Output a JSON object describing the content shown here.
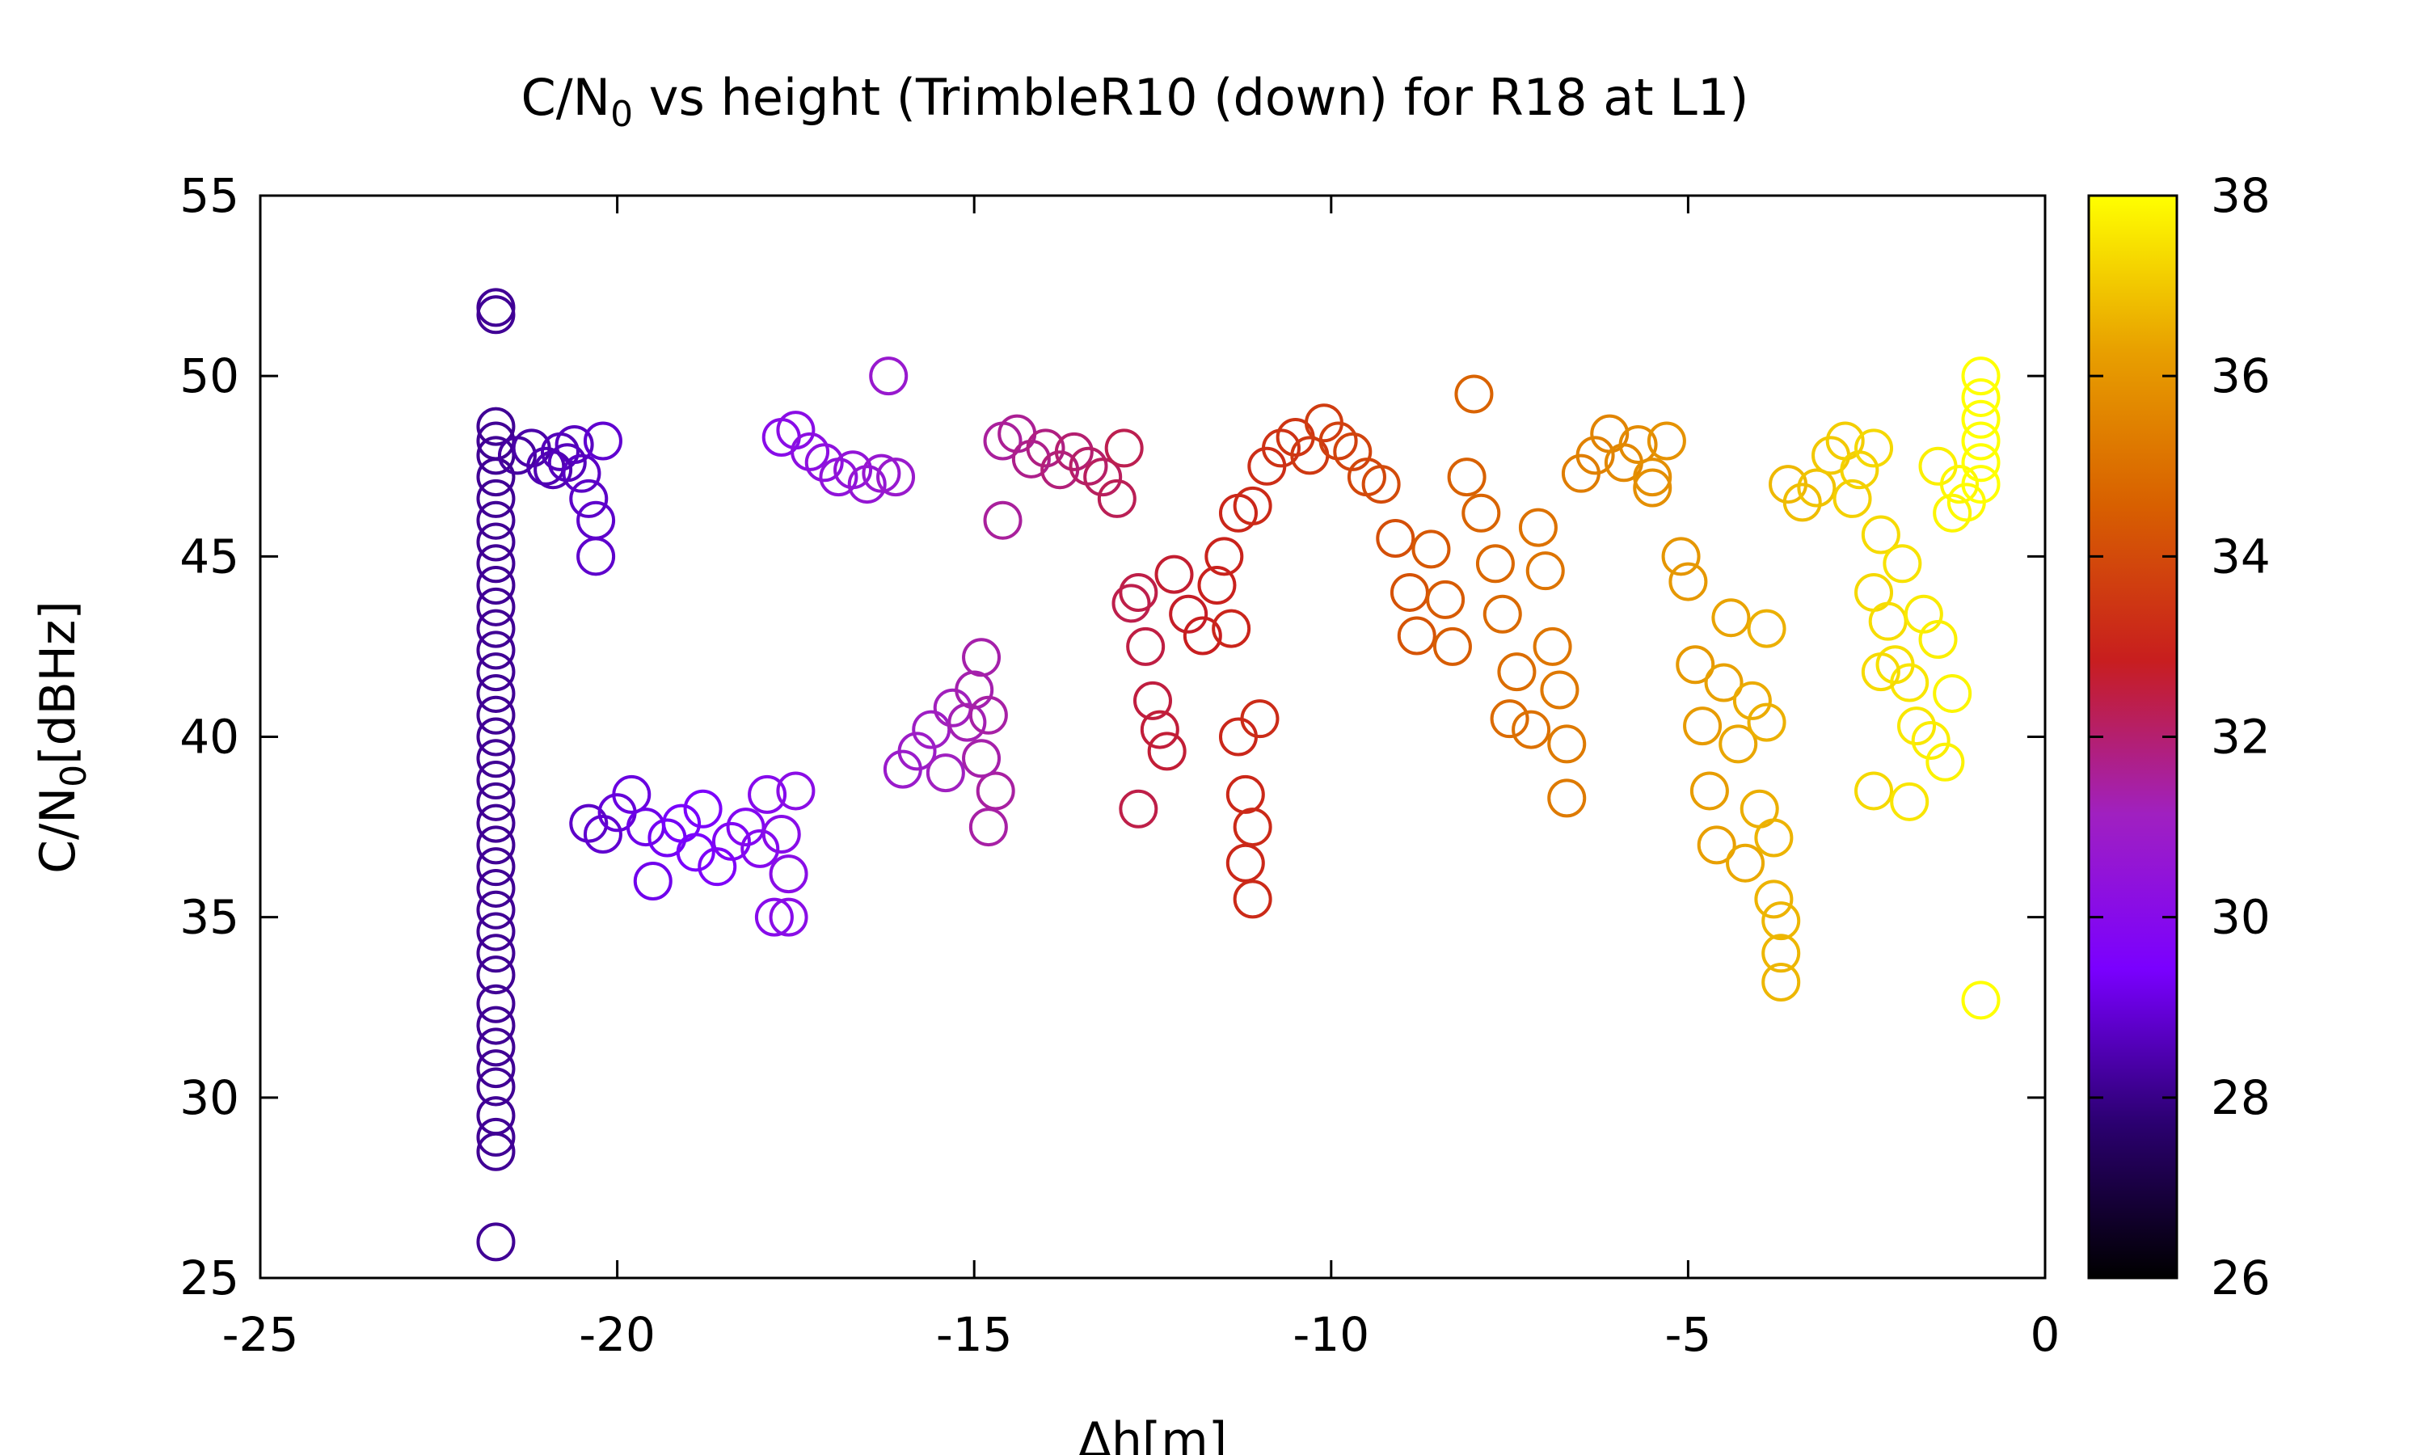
{
  "chart_data": {
    "type": "scatter",
    "title": {
      "main": "C/N",
      "sub": "0",
      "rest": " vs height (TrimbleR10 (down) for R18 at L1)"
    },
    "xlabel": "Δh[m]",
    "ylabel": {
      "main": "C/N",
      "sub": "0",
      "rest": "[dBHz]"
    },
    "xlim": [
      -25,
      0
    ],
    "ylim": [
      25,
      55
    ],
    "xticks": [
      -25,
      -20,
      -15,
      -10,
      -5,
      0
    ],
    "xtick_labels": [
      "-25",
      "-20",
      "-15",
      "-10",
      "-5",
      "0"
    ],
    "yticks": [
      25,
      30,
      35,
      40,
      45,
      50,
      55
    ],
    "ytick_labels": [
      "25",
      "30",
      "35",
      "40",
      "45",
      "50",
      "55"
    ],
    "marker": "open-circle",
    "colorbar": {
      "range": [
        26,
        38
      ],
      "ticks": [
        26,
        28,
        30,
        32,
        34,
        36,
        38
      ],
      "tick_labels": [
        "26",
        "28",
        "30",
        "32",
        "34",
        "36",
        "38"
      ],
      "colormap": "gnuplot-black-purple-red-yellow",
      "stops": [
        "#000000",
        "#2b0070",
        "#7a00ff",
        "#a020c0",
        "#c81e1e",
        "#d86000",
        "#e8a000",
        "#ffff00"
      ]
    },
    "series": [
      {
        "points": [
          [
            -21.7,
            51.9
          ],
          [
            -21.7,
            51.7
          ],
          [
            -21.7,
            48.6
          ],
          [
            -21.7,
            48.2
          ],
          [
            -21.7,
            47.8
          ],
          [
            -21.7,
            47.2
          ],
          [
            -21.7,
            46.6
          ],
          [
            -21.7,
            46.0
          ],
          [
            -21.7,
            45.4
          ],
          [
            -21.7,
            44.8
          ],
          [
            -21.7,
            44.2
          ],
          [
            -21.7,
            43.6
          ],
          [
            -21.7,
            43.0
          ],
          [
            -21.7,
            42.4
          ],
          [
            -21.7,
            41.8
          ],
          [
            -21.7,
            41.2
          ],
          [
            -21.7,
            40.6
          ],
          [
            -21.7,
            40.0
          ],
          [
            -21.7,
            39.4
          ],
          [
            -21.7,
            38.8
          ],
          [
            -21.7,
            38.2
          ],
          [
            -21.7,
            37.6
          ],
          [
            -21.7,
            37.0
          ],
          [
            -21.7,
            36.4
          ],
          [
            -21.7,
            35.8
          ],
          [
            -21.7,
            35.2
          ],
          [
            -21.7,
            34.6
          ],
          [
            -21.7,
            34.0
          ],
          [
            -21.7,
            33.4
          ],
          [
            -21.7,
            32.6
          ],
          [
            -21.7,
            32.0
          ],
          [
            -21.7,
            31.4
          ],
          [
            -21.7,
            30.8
          ],
          [
            -21.7,
            30.3
          ],
          [
            -21.7,
            29.5
          ],
          [
            -21.7,
            28.9
          ],
          [
            -21.7,
            28.5
          ],
          [
            -21.7,
            26.0
          ],
          [
            -21.4,
            47.8
          ],
          [
            -21.2,
            48.0
          ],
          [
            -21.0,
            47.5
          ],
          [
            -20.8,
            47.9
          ],
          [
            -20.6,
            48.1
          ],
          [
            -20.5,
            47.3
          ],
          [
            -20.4,
            46.6
          ],
          [
            -20.3,
            46.0
          ],
          [
            -20.3,
            45.0
          ],
          [
            -20.2,
            48.2
          ],
          [
            -20.9,
            47.4
          ],
          [
            -20.7,
            47.6
          ],
          [
            -20.4,
            37.6
          ],
          [
            -20.2,
            37.3
          ],
          [
            -20.0,
            37.9
          ],
          [
            -19.8,
            38.4
          ],
          [
            -19.6,
            37.5
          ],
          [
            -19.5,
            36.0
          ],
          [
            -19.3,
            37.2
          ],
          [
            -19.1,
            37.6
          ],
          [
            -18.9,
            36.8
          ],
          [
            -18.8,
            38.0
          ],
          [
            -18.6,
            36.4
          ],
          [
            -18.4,
            37.1
          ],
          [
            -18.2,
            37.5
          ],
          [
            -18.0,
            36.9
          ],
          [
            -17.9,
            38.4
          ],
          [
            -17.8,
            35.0
          ],
          [
            -17.6,
            35.0
          ],
          [
            -17.5,
            38.5
          ],
          [
            -17.6,
            36.2
          ],
          [
            -17.7,
            37.3
          ],
          [
            -17.7,
            48.3
          ],
          [
            -17.5,
            48.5
          ],
          [
            -17.3,
            47.9
          ],
          [
            -17.1,
            47.6
          ],
          [
            -16.9,
            47.2
          ],
          [
            -16.7,
            47.4
          ],
          [
            -16.5,
            47.0
          ],
          [
            -16.3,
            47.3
          ],
          [
            -16.2,
            50.0
          ],
          [
            -16.1,
            47.2
          ],
          [
            -16.0,
            39.1
          ],
          [
            -15.8,
            39.6
          ],
          [
            -15.6,
            40.2
          ],
          [
            -15.4,
            39.0
          ],
          [
            -15.3,
            40.8
          ],
          [
            -15.1,
            40.4
          ],
          [
            -15.0,
            41.3
          ],
          [
            -14.9,
            42.2
          ],
          [
            -14.8,
            40.6
          ],
          [
            -14.7,
            38.5
          ],
          [
            -14.8,
            37.5
          ],
          [
            -14.9,
            39.4
          ],
          [
            -14.6,
            48.2
          ],
          [
            -14.4,
            48.4
          ],
          [
            -14.2,
            47.7
          ],
          [
            -14.0,
            48.0
          ],
          [
            -13.8,
            47.4
          ],
          [
            -13.6,
            47.9
          ],
          [
            -13.4,
            47.5
          ],
          [
            -13.2,
            47.2
          ],
          [
            -13.0,
            46.6
          ],
          [
            -12.9,
            48.0
          ],
          [
            -14.6,
            46.0
          ],
          [
            -12.8,
            43.7
          ],
          [
            -12.7,
            44.0
          ],
          [
            -12.6,
            42.5
          ],
          [
            -12.5,
            41.0
          ],
          [
            -12.4,
            40.2
          ],
          [
            -12.3,
            39.6
          ],
          [
            -12.7,
            38.0
          ],
          [
            -12.2,
            44.5
          ],
          [
            -12.0,
            43.4
          ],
          [
            -11.8,
            42.8
          ],
          [
            -11.6,
            44.2
          ],
          [
            -11.5,
            45.0
          ],
          [
            -11.4,
            43.0
          ],
          [
            -11.3,
            40.0
          ],
          [
            -11.2,
            38.4
          ],
          [
            -11.1,
            37.5
          ],
          [
            -11.2,
            36.5
          ],
          [
            -11.1,
            35.5
          ],
          [
            -11.0,
            40.5
          ],
          [
            -11.3,
            46.2
          ],
          [
            -11.1,
            46.4
          ],
          [
            -10.9,
            47.5
          ],
          [
            -10.7,
            48.0
          ],
          [
            -10.5,
            48.3
          ],
          [
            -10.3,
            47.8
          ],
          [
            -10.1,
            48.7
          ],
          [
            -9.9,
            48.2
          ],
          [
            -9.7,
            47.9
          ],
          [
            -9.5,
            47.2
          ],
          [
            -9.3,
            47.0
          ],
          [
            -9.1,
            45.5
          ],
          [
            -8.9,
            44.0
          ],
          [
            -8.8,
            42.8
          ],
          [
            -8.6,
            45.2
          ],
          [
            -8.4,
            43.8
          ],
          [
            -8.3,
            42.5
          ],
          [
            -8.1,
            47.2
          ],
          [
            -8.0,
            49.5
          ],
          [
            -7.9,
            46.2
          ],
          [
            -7.7,
            44.8
          ],
          [
            -7.6,
            43.4
          ],
          [
            -7.5,
            40.5
          ],
          [
            -7.4,
            41.8
          ],
          [
            -7.2,
            40.2
          ],
          [
            -7.1,
            45.8
          ],
          [
            -7.0,
            44.6
          ],
          [
            -6.9,
            42.5
          ],
          [
            -6.8,
            41.3
          ],
          [
            -6.7,
            39.8
          ],
          [
            -6.7,
            38.3
          ],
          [
            -6.5,
            47.3
          ],
          [
            -6.3,
            47.8
          ],
          [
            -6.1,
            48.4
          ],
          [
            -5.9,
            47.6
          ],
          [
            -5.7,
            48.1
          ],
          [
            -5.5,
            47.2
          ],
          [
            -5.3,
            48.2
          ],
          [
            -5.5,
            46.9
          ],
          [
            -5.1,
            45.0
          ],
          [
            -5.0,
            44.3
          ],
          [
            -4.9,
            42.0
          ],
          [
            -4.8,
            40.3
          ],
          [
            -4.7,
            38.5
          ],
          [
            -4.6,
            37.0
          ],
          [
            -4.5,
            41.5
          ],
          [
            -4.4,
            43.3
          ],
          [
            -4.3,
            39.8
          ],
          [
            -4.2,
            36.5
          ],
          [
            -4.1,
            41.0
          ],
          [
            -4.0,
            38.0
          ],
          [
            -3.9,
            43.0
          ],
          [
            -3.8,
            37.2
          ],
          [
            -3.8,
            35.5
          ],
          [
            -3.7,
            34.9
          ],
          [
            -3.7,
            34.0
          ],
          [
            -3.7,
            33.2
          ],
          [
            -3.9,
            40.4
          ],
          [
            -3.6,
            47.0
          ],
          [
            -3.4,
            46.5
          ],
          [
            -3.2,
            46.9
          ],
          [
            -3.0,
            47.8
          ],
          [
            -2.8,
            48.2
          ],
          [
            -2.6,
            47.4
          ],
          [
            -2.4,
            48.0
          ],
          [
            -2.7,
            46.6
          ],
          [
            -2.4,
            44.0
          ],
          [
            -2.3,
            45.6
          ],
          [
            -2.2,
            43.2
          ],
          [
            -2.1,
            42.0
          ],
          [
            -2.0,
            44.8
          ],
          [
            -1.9,
            41.5
          ],
          [
            -1.8,
            40.3
          ],
          [
            -1.7,
            43.4
          ],
          [
            -1.6,
            39.9
          ],
          [
            -1.5,
            42.7
          ],
          [
            -1.4,
            39.3
          ],
          [
            -1.3,
            41.2
          ],
          [
            -2.4,
            38.5
          ],
          [
            -1.9,
            38.2
          ],
          [
            -2.3,
            41.8
          ],
          [
            -1.5,
            47.5
          ],
          [
            -1.3,
            46.2
          ],
          [
            -1.2,
            47.0
          ],
          [
            -1.1,
            46.5
          ],
          [
            -0.9,
            50.0
          ],
          [
            -0.9,
            49.4
          ],
          [
            -0.9,
            48.8
          ],
          [
            -0.9,
            48.2
          ],
          [
            -0.9,
            47.6
          ],
          [
            -0.9,
            47.0
          ],
          [
            -0.9,
            32.7
          ]
        ]
      }
    ]
  }
}
